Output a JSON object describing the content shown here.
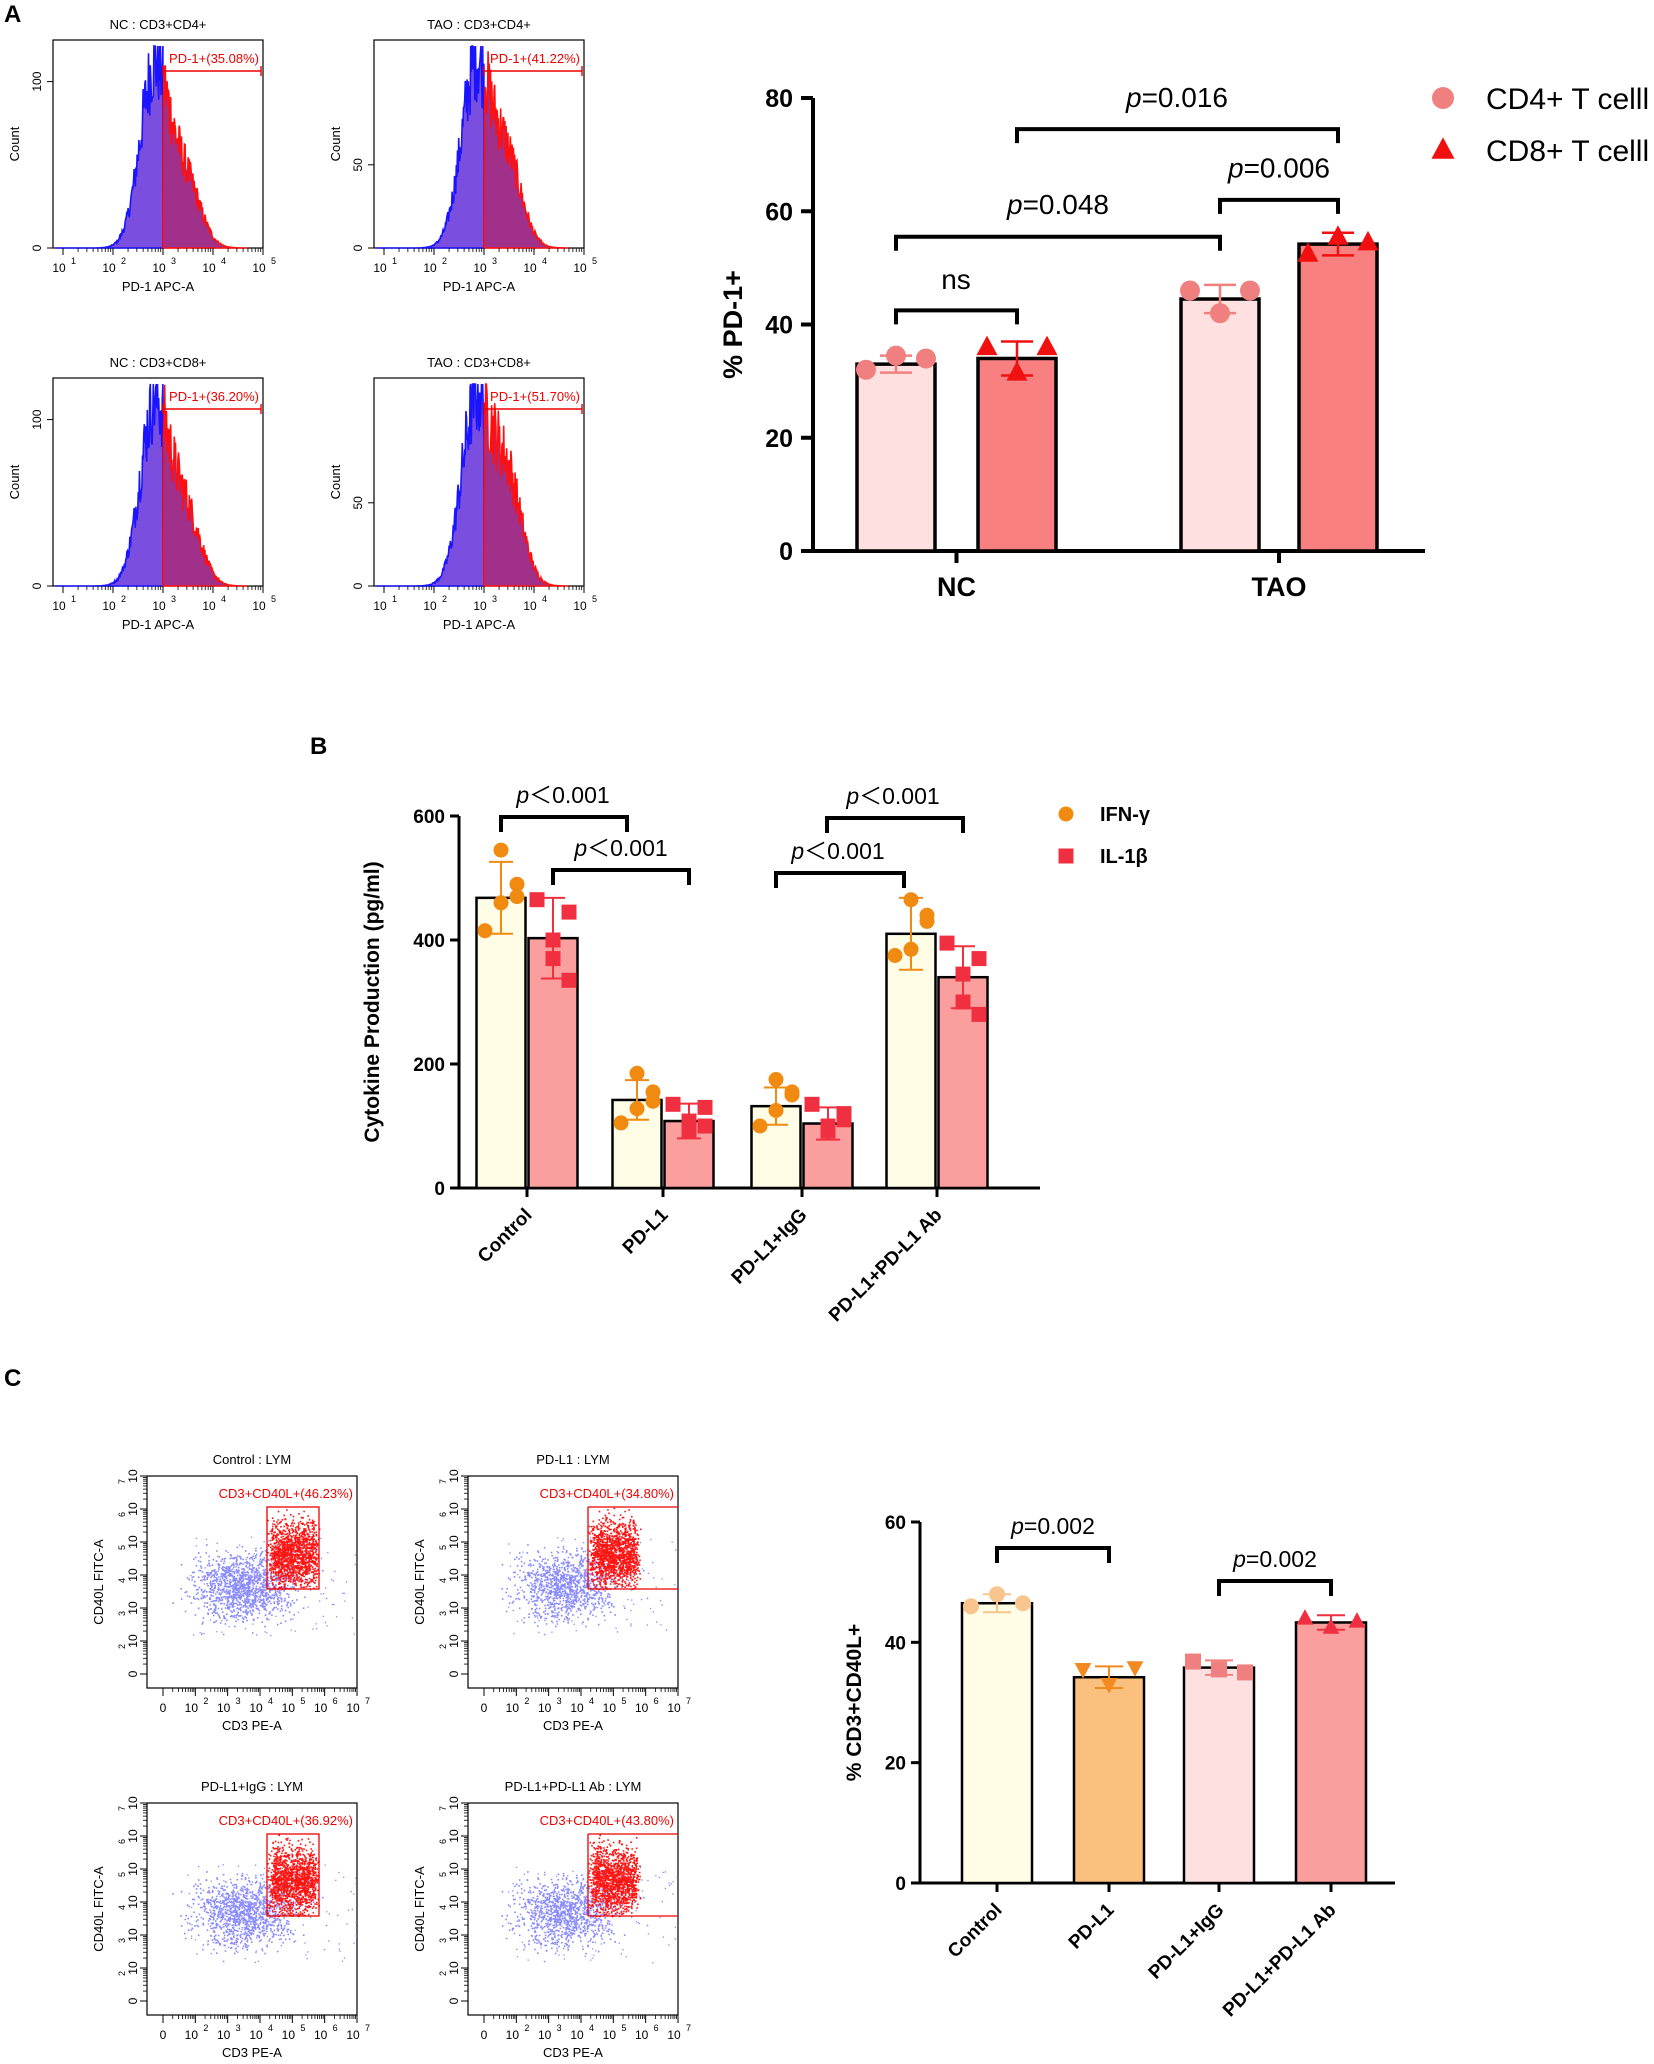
{
  "panel_labels": {
    "a": "A",
    "b": "B",
    "c": "C"
  },
  "flow_histograms": {
    "ylabel": "Count",
    "xlabel": "PD-1 APC-A",
    "x_ticks": [
      "10",
      "10",
      "10",
      "10",
      "10"
    ],
    "x_exps": [
      "1",
      "2",
      "3",
      "4",
      "5"
    ],
    "plots": [
      {
        "title": "NC : CD3+CD4+",
        "gate": "PD-1+(35.08%)",
        "y_ticks": [
          "0",
          "100"
        ],
        "y_vals": [
          0,
          100
        ],
        "ymax": 125
      },
      {
        "title": "TAO : CD3+CD4+",
        "gate": "PD-1+(41.22%)",
        "y_ticks": [
          "0",
          "50"
        ],
        "y_vals": [
          0,
          50
        ],
        "ymax": 125
      },
      {
        "title": "NC : CD3+CD8+",
        "gate": "PD-1+(36.20%)",
        "y_ticks": [
          "0",
          "100"
        ],
        "y_vals": [
          0,
          100
        ],
        "ymax": 125
      },
      {
        "title": "TAO : CD3+CD8+",
        "gate": "PD-1+(51.70%)",
        "y_ticks": [
          "0",
          "50"
        ],
        "y_vals": [
          0,
          50
        ],
        "ymax": 125
      }
    ]
  },
  "flow_scatter": {
    "xlabel": "CD3 PE-A",
    "ylabel": "CD40L FITC-A",
    "x_ticks": [
      "0",
      "10",
      "10",
      "10",
      "10",
      "10",
      "10"
    ],
    "x_exps": [
      "",
      "2",
      "3",
      "4",
      "5",
      "6",
      "7"
    ],
    "y_ticks": [
      "0",
      "10",
      "10",
      "10",
      "10",
      "10",
      "10"
    ],
    "y_exps": [
      "",
      "2",
      "3",
      "4",
      "5",
      "6",
      "7"
    ],
    "plots": [
      {
        "title": "Control : LYM",
        "gate": "CD3+CD40L+(46.23%)"
      },
      {
        "title": "PD-L1 : LYM",
        "gate": "CD3+CD40L+(34.80%)"
      },
      {
        "title": "PD-L1+IgG : LYM",
        "gate": "CD3+CD40L+(36.92%)"
      },
      {
        "title": "PD-L1+PD-L1 Ab : LYM",
        "gate": "CD3+CD40L+(43.80%)"
      }
    ]
  },
  "chart_data": [
    {
      "id": "A",
      "type": "bar",
      "categories": [
        "NC",
        "TAO"
      ],
      "ylabel": "% PD-1+",
      "ylim": [
        0,
        80
      ],
      "yticks": [
        0,
        20,
        40,
        60,
        80
      ],
      "series": [
        {
          "name": "CD4+ T celll",
          "color": "#ffe0e0",
          "marker": "circle",
          "marker_color": "#f08080",
          "values": [
            33,
            44.5
          ],
          "errors": [
            1.5,
            2.5
          ],
          "points": [
            [
              32,
              34.5,
              34
            ],
            [
              46,
              42,
              46
            ]
          ]
        },
        {
          "name": "CD8+ T celll",
          "color": "#f88080",
          "marker": "triangle",
          "marker_color": "#f01010",
          "values": [
            34,
            54.2
          ],
          "errors": [
            3,
            2
          ],
          "points": [
            [
              36,
              31.5,
              36
            ],
            [
              52.5,
              55.5,
              54.5
            ]
          ]
        }
      ],
      "comparisons": [
        {
          "label": "p=0.016",
          "p": "p",
          "rest": "=0.016"
        },
        {
          "label": "p=0.006",
          "p": "p",
          "rest": "=0.006"
        },
        {
          "label": "p=0.048",
          "p": "p",
          "rest": "=0.048"
        },
        {
          "label": "ns",
          "p": "",
          "rest": "ns"
        }
      ]
    },
    {
      "id": "B",
      "type": "bar",
      "categories": [
        "Control",
        "PD-L1",
        "PD-L1+IgG",
        "PD-L1+PD-L1 Ab"
      ],
      "ylabel": "Cytokine Production (pg/ml)",
      "ylim": [
        0,
        600
      ],
      "yticks": [
        0,
        200,
        400,
        600
      ],
      "series": [
        {
          "name": "IFN-γ",
          "color": "#fffde6",
          "marker": "circle",
          "marker_color": "#f08a10",
          "values": [
            468,
            142,
            132,
            410
          ],
          "errors": [
            58,
            32,
            30,
            58
          ],
          "points": [
            [
              545,
              490,
              460,
              415,
              470
            ],
            [
              185,
              155,
              128,
              105,
              140
            ],
            [
              175,
              155,
              125,
              100,
              150
            ],
            [
              465,
              440,
              385,
              375,
              430
            ]
          ]
        },
        {
          "name": "IL-1β",
          "color": "#fb9e9e",
          "marker": "square",
          "marker_color": "#f03040",
          "values": [
            403,
            108,
            104,
            340
          ],
          "errors": [
            65,
            28,
            26,
            50
          ],
          "points": [
            [
              465,
              445,
              400,
              370,
              335
            ],
            [
              135,
              100,
              108,
              92,
              130
            ],
            [
              135,
              110,
              100,
              92,
              120
            ],
            [
              395,
              370,
              345,
              300,
              280
            ]
          ]
        }
      ],
      "comparisons": [
        {
          "label": "p<0.001",
          "p": "p",
          "rest": "＜0.001"
        },
        {
          "label": "p<0.001",
          "p": "p",
          "rest": "＜0.001"
        },
        {
          "label": "p<0.001",
          "p": "p",
          "rest": "＜0.001"
        },
        {
          "label": "p<0.001",
          "p": "p",
          "rest": "＜0.001"
        }
      ]
    },
    {
      "id": "C",
      "type": "bar",
      "categories": [
        "Control",
        "PD-L1",
        "PD-L1+IgG",
        "PD-L1+PD-L1 Ab"
      ],
      "ylabel": "% CD3+CD40L+",
      "ylim": [
        0,
        60
      ],
      "yticks": [
        0,
        20,
        40,
        60
      ],
      "series": [
        {
          "name": "% CD3+CD40L+",
          "colors": [
            "#fffde6",
            "#fbc07e",
            "#ffe0e0",
            "#fb9e9e"
          ],
          "marker_colors": [
            "#f9c58e",
            "#f28a20",
            "#f08080",
            "#f03040"
          ],
          "markers": [
            "circle",
            "triangle-down",
            "square",
            "triangle"
          ],
          "values": [
            46.5,
            34.2,
            35.8,
            43.3
          ],
          "errors": [
            1.5,
            1.8,
            1.2,
            1.2
          ],
          "points": [
            [
              46,
              48,
              46.5
            ],
            [
              35.5,
              33,
              35.8
            ],
            [
              36.8,
              35.5,
              35
            ],
            [
              44,
              42.5,
              43.5
            ]
          ]
        }
      ],
      "comparisons": [
        {
          "label": "p=0.002",
          "p": "p",
          "rest": "=0.002"
        },
        {
          "label": "p=0.002",
          "p": "p",
          "rest": "=0.002"
        }
      ]
    }
  ]
}
